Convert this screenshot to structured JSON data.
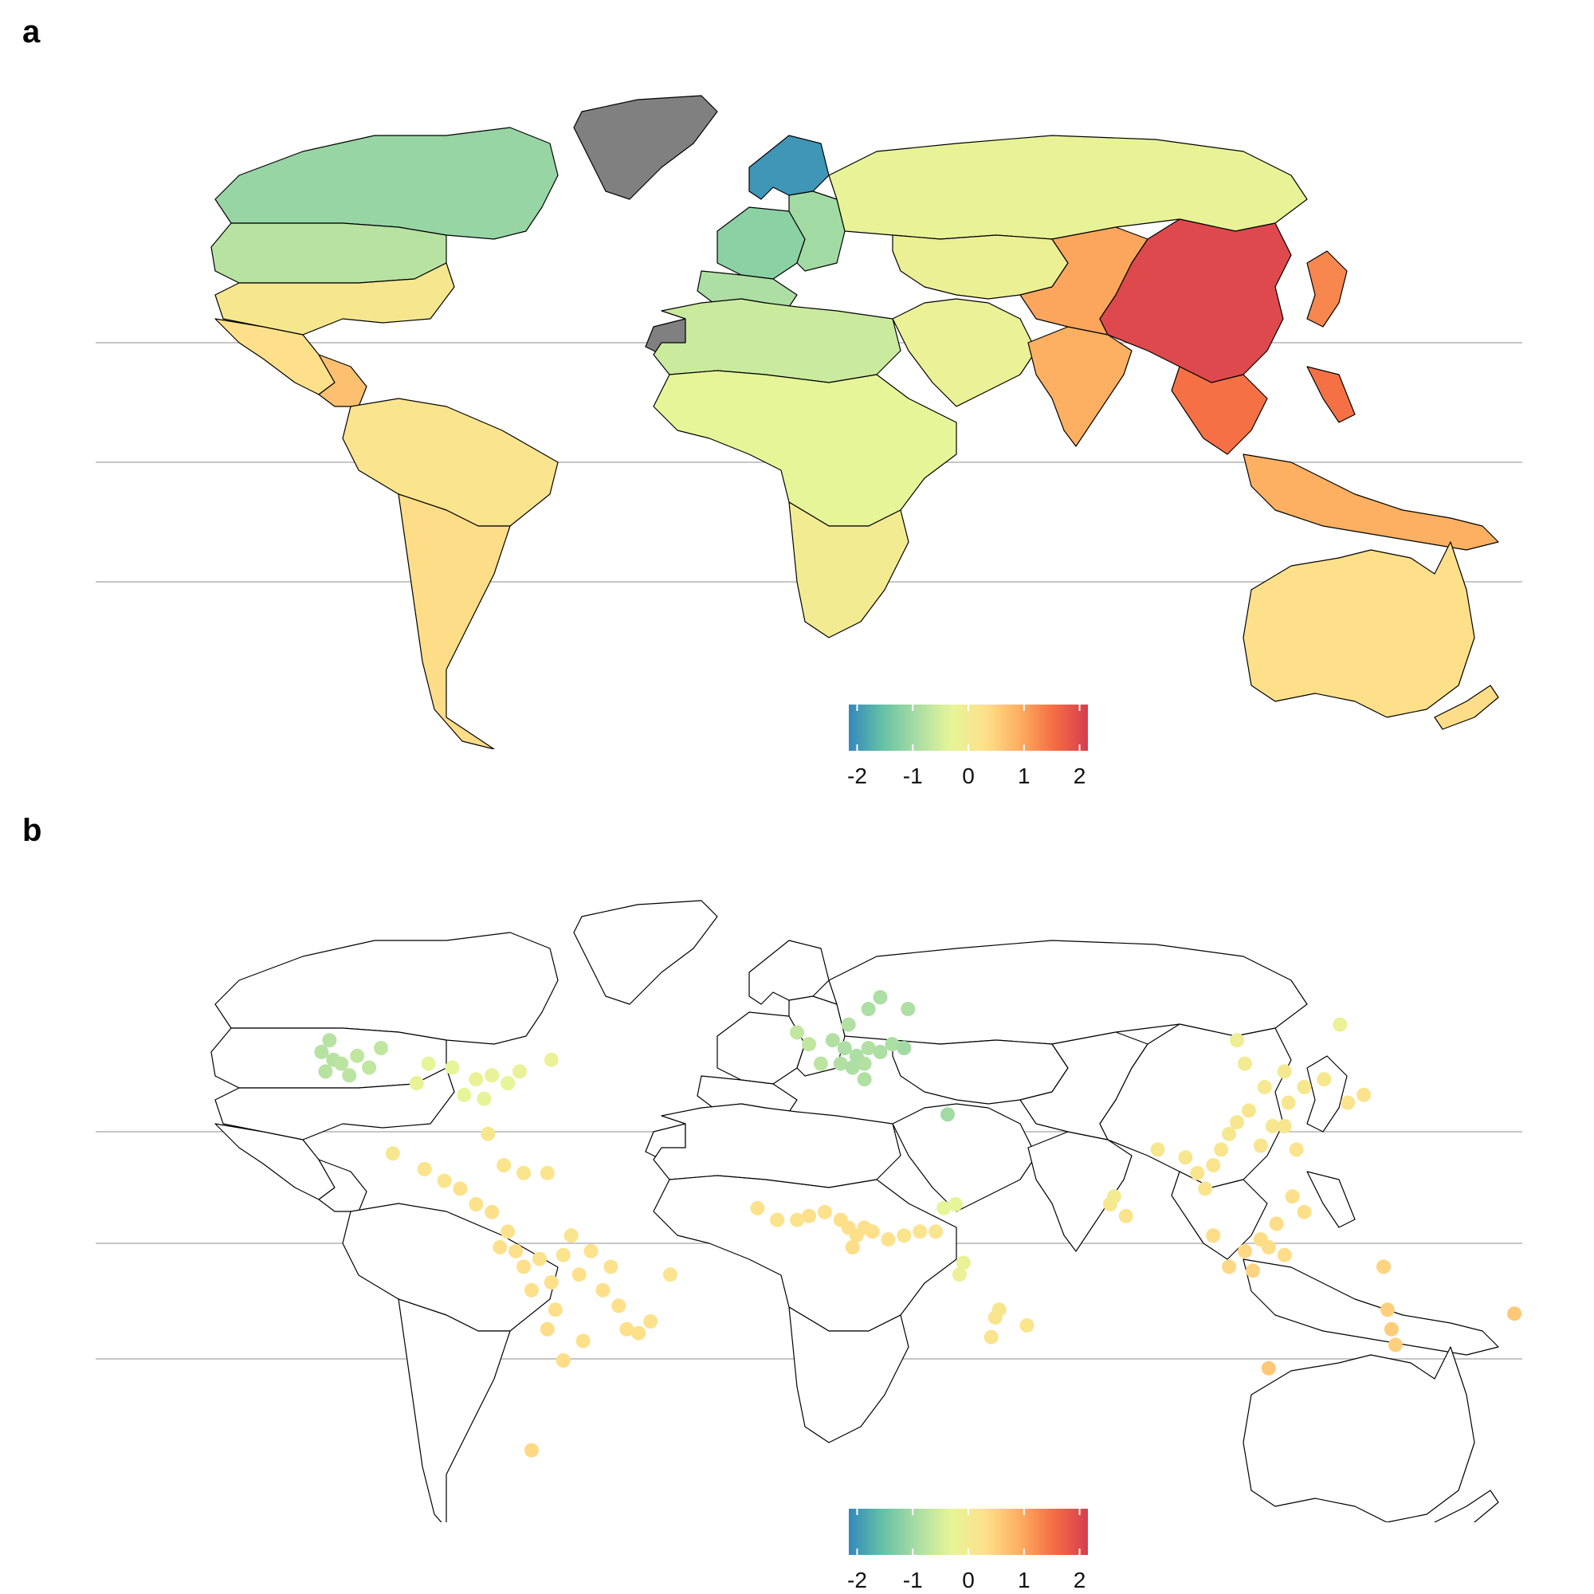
{
  "panels": [
    {
      "label": "a",
      "kind": "choropleth"
    },
    {
      "label": "b",
      "kind": "points"
    }
  ],
  "legend": {
    "ticks": [
      "-2",
      "-1",
      "0",
      "1",
      "2"
    ],
    "range": [
      -2.15,
      2.15
    ],
    "palette": [
      "#3288bd",
      "#66c2a5",
      "#abdda4",
      "#e6f598",
      "#fee08b",
      "#fdae61",
      "#f46d43",
      "#d53e4f"
    ]
  },
  "colors": {
    "no_data": "#808080",
    "border": "#000000",
    "gridline": "#b4b4b4"
  },
  "chart_data": [
    {
      "type": "heatmap",
      "panel": "a",
      "regions": [
        {
          "region": "Canada",
          "value": -1.1
        },
        {
          "region": "Northern United States",
          "value": -0.8
        },
        {
          "region": "Southern United States",
          "value": 0.1
        },
        {
          "region": "Mexico",
          "value": 0.3
        },
        {
          "region": "Central America",
          "value": 0.7
        },
        {
          "region": "Northern South America",
          "value": 0.2
        },
        {
          "region": "Southern South America",
          "value": 0.35
        },
        {
          "region": "Greenland",
          "value": null
        },
        {
          "region": "Western Sahara",
          "value": null
        },
        {
          "region": "Scandinavia",
          "value": -2.0
        },
        {
          "region": "Western Europe",
          "value": -1.2
        },
        {
          "region": "Eastern Europe",
          "value": -1.0
        },
        {
          "region": "Southern Europe",
          "value": -0.9
        },
        {
          "region": "Russia",
          "value": -0.25
        },
        {
          "region": "North Africa",
          "value": -0.6
        },
        {
          "region": "Sub-Saharan Africa",
          "value": -0.3
        },
        {
          "region": "Southern Africa",
          "value": 0.0
        },
        {
          "region": "Middle East",
          "value": -0.2
        },
        {
          "region": "Central Asia",
          "value": -0.15
        },
        {
          "region": "India",
          "value": 0.9
        },
        {
          "region": "China (west)",
          "value": 1.0
        },
        {
          "region": "China (east)",
          "value": 2.0
        },
        {
          "region": "Japan",
          "value": 1.3
        },
        {
          "region": "Southeast Asia",
          "value": 1.5
        },
        {
          "region": "Indonesia",
          "value": 0.9
        },
        {
          "region": "Australia",
          "value": 0.3
        },
        {
          "region": "New Zealand",
          "value": 0.35
        }
      ]
    },
    {
      "type": "scatter",
      "panel": "b",
      "points": [
        {
          "lon": -123,
          "lat": 49,
          "value": -0.8
        },
        {
          "lon": -120,
          "lat": 47,
          "value": -0.8
        },
        {
          "lon": -118,
          "lat": 46,
          "value": -0.75
        },
        {
          "lon": -114,
          "lat": 48,
          "value": -0.7
        },
        {
          "lon": -111,
          "lat": 45,
          "value": -0.7
        },
        {
          "lon": -122,
          "lat": 44,
          "value": -0.8
        },
        {
          "lon": -116,
          "lat": 43,
          "value": -0.75
        },
        {
          "lon": -121,
          "lat": 52,
          "value": -0.8
        },
        {
          "lon": -108,
          "lat": 50,
          "value": -0.7
        },
        {
          "lon": -96,
          "lat": 46,
          "value": -0.3
        },
        {
          "lon": -90,
          "lat": 45,
          "value": -0.3
        },
        {
          "lon": -84,
          "lat": 42,
          "value": -0.2
        },
        {
          "lon": -80,
          "lat": 43,
          "value": -0.25
        },
        {
          "lon": -76,
          "lat": 41,
          "value": -0.3
        },
        {
          "lon": -73,
          "lat": 44,
          "value": -0.2
        },
        {
          "lon": -87,
          "lat": 38,
          "value": -0.3
        },
        {
          "lon": -82,
          "lat": 37,
          "value": -0.25
        },
        {
          "lon": -99,
          "lat": 41,
          "value": -0.2
        },
        {
          "lon": -65,
          "lat": 47,
          "value": -0.2
        },
        {
          "lon": -81,
          "lat": 28,
          "value": 0.1
        },
        {
          "lon": -105,
          "lat": 23,
          "value": 0.1
        },
        {
          "lon": -97,
          "lat": 19,
          "value": 0.2
        },
        {
          "lon": -92,
          "lat": 16,
          "value": 0.2
        },
        {
          "lon": -88,
          "lat": 14,
          "value": 0.25
        },
        {
          "lon": -84,
          "lat": 10,
          "value": 0.25
        },
        {
          "lon": -80,
          "lat": 8,
          "value": 0.3
        },
        {
          "lon": -77,
          "lat": 20,
          "value": 0.2
        },
        {
          "lon": -72,
          "lat": 18,
          "value": 0.2
        },
        {
          "lon": -66,
          "lat": 18,
          "value": 0.2
        },
        {
          "lon": -76,
          "lat": 3,
          "value": 0.25
        },
        {
          "lon": -74,
          "lat": -2,
          "value": 0.3
        },
        {
          "lon": -72,
          "lat": -6,
          "value": 0.3
        },
        {
          "lon": -68,
          "lat": -4,
          "value": 0.25
        },
        {
          "lon": -65,
          "lat": -10,
          "value": 0.3
        },
        {
          "lon": -62,
          "lat": -3,
          "value": 0.2
        },
        {
          "lon": -60,
          "lat": 2,
          "value": 0.2
        },
        {
          "lon": -58,
          "lat": -8,
          "value": 0.3
        },
        {
          "lon": -55,
          "lat": -2,
          "value": 0.25
        },
        {
          "lon": -52,
          "lat": -12,
          "value": 0.3
        },
        {
          "lon": -50,
          "lat": -6,
          "value": 0.25
        },
        {
          "lon": -48,
          "lat": -16,
          "value": 0.3
        },
        {
          "lon": -46,
          "lat": -22,
          "value": 0.3
        },
        {
          "lon": -43,
          "lat": -23,
          "value": 0.3
        },
        {
          "lon": -40,
          "lat": -20,
          "value": 0.25
        },
        {
          "lon": -35,
          "lat": -8,
          "value": 0.2
        },
        {
          "lon": -57,
          "lat": -25,
          "value": 0.3
        },
        {
          "lon": -64,
          "lat": -17,
          "value": 0.3
        },
        {
          "lon": -66,
          "lat": -22,
          "value": 0.35
        },
        {
          "lon": -70,
          "lat": -12,
          "value": 0.3
        },
        {
          "lon": -78,
          "lat": -1,
          "value": 0.3
        },
        {
          "lon": -62,
          "lat": -30,
          "value": 0.35
        },
        {
          "lon": -70,
          "lat": -53,
          "value": 0.4
        },
        {
          "lon": 6,
          "lat": 52,
          "value": -0.85
        },
        {
          "lon": 9,
          "lat": 50,
          "value": -0.9
        },
        {
          "lon": 12,
          "lat": 48,
          "value": -0.9
        },
        {
          "lon": 15,
          "lat": 50,
          "value": -0.85
        },
        {
          "lon": 18,
          "lat": 49,
          "value": -0.9
        },
        {
          "lon": 21,
          "lat": 51,
          "value": -0.9
        },
        {
          "lon": 24,
          "lat": 50,
          "value": -1.0
        },
        {
          "lon": 8,
          "lat": 46,
          "value": -0.85
        },
        {
          "lon": 11,
          "lat": 45,
          "value": -0.9
        },
        {
          "lon": 14,
          "lat": 46,
          "value": -0.85
        },
        {
          "lon": 3,
          "lat": 46,
          "value": -0.75
        },
        {
          "lon": 0,
          "lat": 51,
          "value": -0.7
        },
        {
          "lon": -3,
          "lat": 54,
          "value": -0.7
        },
        {
          "lon": 10,
          "lat": 56,
          "value": -0.85
        },
        {
          "lon": 15,
          "lat": 60,
          "value": -0.9
        },
        {
          "lon": 18,
          "lat": 63,
          "value": -0.9
        },
        {
          "lon": 25,
          "lat": 60,
          "value": -0.9
        },
        {
          "lon": 14,
          "lat": 42,
          "value": -0.85
        },
        {
          "lon": 35,
          "lat": 33,
          "value": -1.0
        },
        {
          "lon": 37,
          "lat": 10,
          "value": -0.3
        },
        {
          "lon": 34,
          "lat": 9,
          "value": -0.3
        },
        {
          "lon": 39,
          "lat": -5,
          "value": -0.2
        },
        {
          "lon": 38,
          "lat": -8,
          "value": -0.2
        },
        {
          "lon": -13,
          "lat": 9,
          "value": 0.25
        },
        {
          "lon": -8,
          "lat": 6,
          "value": 0.25
        },
        {
          "lon": -3,
          "lat": 6,
          "value": 0.25
        },
        {
          "lon": 0,
          "lat": 7,
          "value": 0.3
        },
        {
          "lon": 4,
          "lat": 8,
          "value": 0.25
        },
        {
          "lon": 8,
          "lat": 6,
          "value": 0.3
        },
        {
          "lon": 10,
          "lat": 4,
          "value": 0.3
        },
        {
          "lon": 12,
          "lat": 2,
          "value": 0.3
        },
        {
          "lon": 14,
          "lat": 4,
          "value": 0.3
        },
        {
          "lon": 11,
          "lat": -1,
          "value": 0.35
        },
        {
          "lon": 16,
          "lat": 3,
          "value": 0.3
        },
        {
          "lon": 20,
          "lat": 1,
          "value": 0.25
        },
        {
          "lon": 24,
          "lat": 2,
          "value": 0.2
        },
        {
          "lon": 28,
          "lat": 3,
          "value": 0.2
        },
        {
          "lon": 32,
          "lat": 3,
          "value": 0.15
        },
        {
          "lon": 47,
          "lat": -19,
          "value": 0.15
        },
        {
          "lon": 48,
          "lat": -17,
          "value": 0.1
        },
        {
          "lon": 46,
          "lat": -24,
          "value": 0.2
        },
        {
          "lon": 55,
          "lat": -21,
          "value": 0.2
        },
        {
          "lon": 76,
          "lat": 10,
          "value": 0.1
        },
        {
          "lon": 77,
          "lat": 12,
          "value": 0.0
        },
        {
          "lon": 80,
          "lat": 7,
          "value": 0.2
        },
        {
          "lon": 88,
          "lat": 24,
          "value": 0.1
        },
        {
          "lon": 95,
          "lat": 22,
          "value": 0.1
        },
        {
          "lon": 98,
          "lat": 18,
          "value": 0.15
        },
        {
          "lon": 100,
          "lat": 14,
          "value": 0.2
        },
        {
          "lon": 102,
          "lat": 20,
          "value": 0.15
        },
        {
          "lon": 104,
          "lat": 24,
          "value": 0.15
        },
        {
          "lon": 106,
          "lat": 28,
          "value": 0.1
        },
        {
          "lon": 108,
          "lat": 31,
          "value": 0.1
        },
        {
          "lon": 111,
          "lat": 34,
          "value": 0.1
        },
        {
          "lon": 114,
          "lat": 25,
          "value": 0.15
        },
        {
          "lon": 117,
          "lat": 30,
          "value": 0.1
        },
        {
          "lon": 120,
          "lat": 30,
          "value": 0.1
        },
        {
          "lon": 121,
          "lat": 36,
          "value": 0.1
        },
        {
          "lon": 123,
          "lat": 24,
          "value": 0.2
        },
        {
          "lon": 125,
          "lat": 40,
          "value": 0.1
        },
        {
          "lon": 120,
          "lat": 44,
          "value": 0.05
        },
        {
          "lon": 115,
          "lat": 40,
          "value": 0.05
        },
        {
          "lon": 110,
          "lat": 46,
          "value": 0.0
        },
        {
          "lon": 108,
          "lat": 52,
          "value": -0.1
        },
        {
          "lon": 130,
          "lat": 42,
          "value": 0.1
        },
        {
          "lon": 136,
          "lat": 36,
          "value": 0.2
        },
        {
          "lon": 140,
          "lat": 38,
          "value": 0.25
        },
        {
          "lon": 134,
          "lat": 56,
          "value": -0.2
        },
        {
          "lon": 122,
          "lat": 12,
          "value": 0.3
        },
        {
          "lon": 125,
          "lat": 8,
          "value": 0.3
        },
        {
          "lon": 118,
          "lat": 5,
          "value": 0.35
        },
        {
          "lon": 114,
          "lat": 1,
          "value": 0.35
        },
        {
          "lon": 110,
          "lat": -2,
          "value": 0.4
        },
        {
          "lon": 116,
          "lat": -1,
          "value": 0.35
        },
        {
          "lon": 120,
          "lat": -3,
          "value": 0.35
        },
        {
          "lon": 106,
          "lat": -6,
          "value": 0.4
        },
        {
          "lon": 112,
          "lat": -7,
          "value": 0.45
        },
        {
          "lon": 102,
          "lat": 2,
          "value": 0.35
        },
        {
          "lon": 145,
          "lat": -6,
          "value": 0.45
        },
        {
          "lon": 146,
          "lat": -17,
          "value": 0.5
        },
        {
          "lon": 147,
          "lat": -22,
          "value": 0.55
        },
        {
          "lon": 148,
          "lat": -26,
          "value": 0.5
        },
        {
          "lon": 116,
          "lat": -32,
          "value": 0.6
        },
        {
          "lon": 178,
          "lat": -18,
          "value": 0.6
        }
      ]
    }
  ]
}
